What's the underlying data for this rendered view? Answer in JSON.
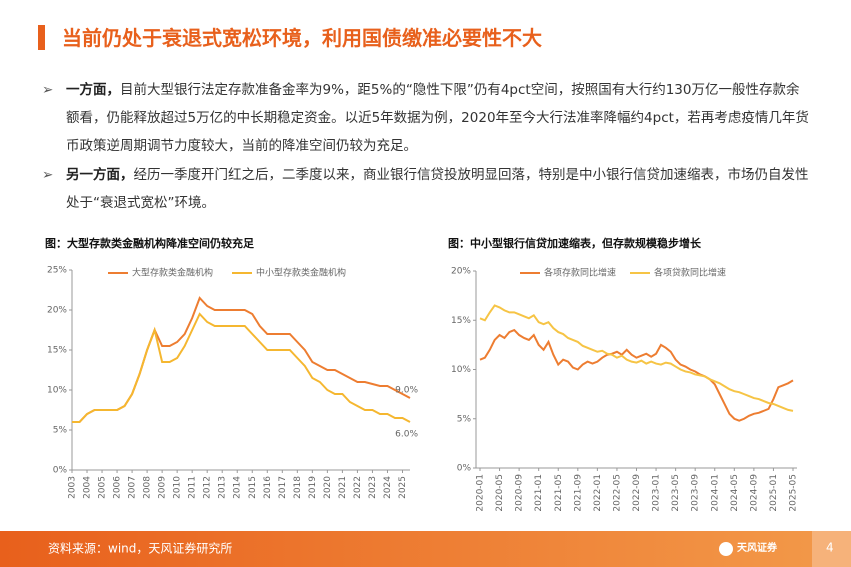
{
  "header": {
    "title": "当前仍处于衰退式宽松环境，利用国债缴准必要性不大"
  },
  "bullets": [
    {
      "lead": "一方面，",
      "text": "目前大型银行法定存款准备金率为9%，距5%的“隐性下限”仍有4pct空间，按照国有大行约130万亿一般性存款余额看，仍能释放超过5万亿的中长期稳定资金。以近5年数据为例，2020年至今大行法准率降幅约4pct，若再考虑疫情几年货币政策逆周期调节力度较大，当前的降准空间仍较为充足。"
    },
    {
      "lead": "另一方面，",
      "text": "经历一季度开门红之后，二季度以来，商业银行信贷投放明显回落，特别是中小银行信贷加速缩表，市场仍自发性处于“衰退式宽松”环境。"
    }
  ],
  "chart_data": [
    {
      "type": "line",
      "title": "图：大型存款类金融机构降准空间仍较充足",
      "x": [
        2003,
        2003.5,
        2004,
        2004.5,
        2005,
        2005.5,
        2006,
        2006.5,
        2007,
        2007.5,
        2008,
        2008.5,
        2009,
        2009.5,
        2010,
        2010.5,
        2011,
        2011.5,
        2012,
        2012.5,
        2013,
        2013.5,
        2014,
        2014.5,
        2015,
        2015.5,
        2016,
        2016.5,
        2017,
        2017.5,
        2018,
        2018.5,
        2019,
        2019.5,
        2020,
        2020.5,
        2021,
        2021.5,
        2022,
        2022.5,
        2023,
        2023.5,
        2024,
        2024.5,
        2025,
        2025.5
      ],
      "series": [
        {
          "name": "大型存款类金融机构",
          "color": "#ed7d31",
          "values": [
            6.0,
            6.0,
            7.0,
            7.5,
            7.5,
            7.5,
            7.5,
            8.0,
            9.5,
            12.0,
            15.0,
            17.5,
            15.5,
            15.5,
            16.0,
            17.0,
            19.0,
            21.5,
            20.5,
            20.0,
            20.0,
            20.0,
            20.0,
            20.0,
            19.5,
            18.0,
            17.0,
            17.0,
            17.0,
            17.0,
            16.0,
            15.0,
            13.5,
            13.0,
            12.5,
            12.5,
            12.0,
            11.5,
            11.0,
            11.0,
            10.75,
            10.5,
            10.5,
            10.0,
            9.5,
            9.0
          ]
        },
        {
          "name": "中小型存款类金融机构",
          "color": "#f5b730",
          "values": [
            6.0,
            6.0,
            7.0,
            7.5,
            7.5,
            7.5,
            7.5,
            8.0,
            9.5,
            12.0,
            15.0,
            17.5,
            13.5,
            13.5,
            14.0,
            15.5,
            17.5,
            19.5,
            18.5,
            18.0,
            18.0,
            18.0,
            18.0,
            18.0,
            17.0,
            16.0,
            15.0,
            15.0,
            15.0,
            15.0,
            14.0,
            13.0,
            11.5,
            11.0,
            10.0,
            9.5,
            9.5,
            8.5,
            8.0,
            7.5,
            7.5,
            7.0,
            7.0,
            6.5,
            6.5,
            6.0
          ]
        }
      ],
      "annotations": [
        "9.0%",
        "6.0%"
      ],
      "xlim": [
        2003,
        2025.5
      ],
      "xticks": [
        2003,
        2004,
        2005,
        2006,
        2007,
        2008,
        2009,
        2010,
        2011,
        2012,
        2013,
        2014,
        2015,
        2016,
        2017,
        2018,
        2019,
        2020,
        2021,
        2022,
        2023,
        2024,
        2025
      ],
      "ylim": [
        0,
        25
      ],
      "yticks": [
        {
          "value": 0,
          "label": "0%"
        },
        {
          "value": 5,
          "label": "5%"
        },
        {
          "value": 10,
          "label": "10%"
        },
        {
          "value": 15,
          "label": "15%"
        },
        {
          "value": 20,
          "label": "20%"
        },
        {
          "value": 25,
          "label": "25%"
        }
      ]
    },
    {
      "type": "line",
      "title": "图：中小型银行信贷加速缩表，但存款规模稳步增长",
      "categories": [
        "2020-01",
        null,
        null,
        null,
        "2020-05",
        null,
        null,
        null,
        "2020-09",
        null,
        null,
        null,
        "2021-01",
        null,
        null,
        null,
        "2021-05",
        null,
        null,
        null,
        "2021-09",
        null,
        null,
        null,
        "2022-01",
        null,
        null,
        null,
        "2022-05",
        null,
        null,
        null,
        "2022-09",
        null,
        null,
        null,
        "2023-01",
        null,
        null,
        null,
        "2023-05",
        null,
        null,
        null,
        "2023-09",
        null,
        null,
        null,
        "2024-01",
        null,
        null,
        null,
        "2024-05",
        null,
        null,
        null,
        "2024-09",
        null,
        null,
        null,
        "2025-01",
        null,
        null,
        null,
        "2025-05"
      ],
      "series": [
        {
          "name": "各项存款同比增速",
          "color": "#ed7d31",
          "values": [
            11.0,
            11.2,
            12.0,
            13.0,
            13.5,
            13.2,
            13.8,
            14.0,
            13.5,
            13.2,
            13.0,
            13.5,
            12.5,
            12.0,
            12.8,
            11.5,
            10.5,
            11.0,
            10.8,
            10.2,
            10.0,
            10.5,
            10.8,
            10.6,
            10.8,
            11.2,
            11.5,
            11.6,
            11.8,
            11.5,
            12.0,
            11.5,
            11.2,
            11.4,
            11.6,
            11.3,
            11.6,
            12.5,
            12.2,
            11.8,
            11.0,
            10.5,
            10.3,
            10.0,
            9.8,
            9.5,
            9.3,
            9.0,
            8.5,
            7.5,
            6.5,
            5.5,
            5.0,
            4.8,
            5.0,
            5.3,
            5.5,
            5.6,
            5.8,
            6.0,
            7.0,
            8.2,
            8.4,
            8.6,
            8.9
          ]
        },
        {
          "name": "各项贷款同比增速",
          "color": "#f6c445",
          "values": [
            15.2,
            15.0,
            15.8,
            16.5,
            16.3,
            16.0,
            15.8,
            15.8,
            15.6,
            15.4,
            15.2,
            15.5,
            14.8,
            14.6,
            14.8,
            14.2,
            13.8,
            13.6,
            13.2,
            13.0,
            12.8,
            12.4,
            12.2,
            12.0,
            11.8,
            11.9,
            11.6,
            11.5,
            11.2,
            11.4,
            11.0,
            10.8,
            10.7,
            10.9,
            10.6,
            10.8,
            10.6,
            10.5,
            10.7,
            10.6,
            10.3,
            10.0,
            9.8,
            9.7,
            9.5,
            9.4,
            9.3,
            9.0,
            8.8,
            8.6,
            8.3,
            8.0,
            7.8,
            7.7,
            7.5,
            7.3,
            7.1,
            7.0,
            6.8,
            6.6,
            6.5,
            6.3,
            6.1,
            5.9,
            5.8
          ]
        }
      ],
      "ylim": [
        0,
        20
      ],
      "yticks": [
        {
          "value": 0,
          "label": "0%"
        },
        {
          "value": 5,
          "label": "5%"
        },
        {
          "value": 10,
          "label": "10%"
        },
        {
          "value": 15,
          "label": "15%"
        },
        {
          "value": 20,
          "label": "20%"
        }
      ]
    }
  ],
  "footer": {
    "source": "资料来源：wind，天风证券研究所",
    "logo": "天风证券",
    "page": "4"
  }
}
